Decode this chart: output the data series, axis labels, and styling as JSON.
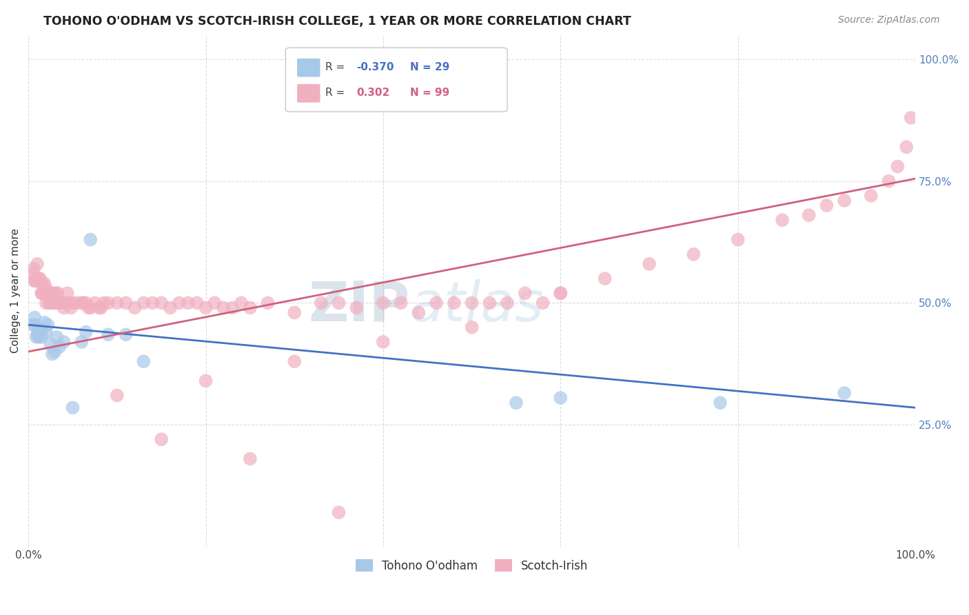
{
  "title": "TOHONO O'ODHAM VS SCOTCH-IRISH COLLEGE, 1 YEAR OR MORE CORRELATION CHART",
  "source": "Source: ZipAtlas.com",
  "ylabel": "College, 1 year or more",
  "xmin": 0.0,
  "xmax": 1.0,
  "ymin": 0.0,
  "ymax": 1.05,
  "ytick_values": [
    0.25,
    0.5,
    0.75,
    1.0
  ],
  "ytick_labels": [
    "25.0%",
    "50.0%",
    "75.0%",
    "100.0%"
  ],
  "xtick_values": [
    0.0,
    1.0
  ],
  "xtick_labels": [
    "0.0%",
    "100.0%"
  ],
  "legend_label1": "Tohono O'odham",
  "legend_label2": "Scotch-Irish",
  "blue_R": "-0.370",
  "blue_N": "29",
  "pink_R": "0.302",
  "pink_N": "99",
  "blue_color": "#a8c8e8",
  "pink_color": "#f0b0c0",
  "blue_line_color": "#4472c4",
  "pink_line_color": "#d06080",
  "watermark_zip": "ZIP",
  "watermark_atlas": "atlas",
  "blue_line_x0": 0.0,
  "blue_line_y0": 0.455,
  "blue_line_x1": 1.0,
  "blue_line_y1": 0.285,
  "pink_line_x0": 0.0,
  "pink_line_y0": 0.4,
  "pink_line_x1": 1.0,
  "pink_line_y1": 0.755,
  "blue_points_x": [
    0.005,
    0.007,
    0.008,
    0.009,
    0.01,
    0.012,
    0.012,
    0.015,
    0.015,
    0.018,
    0.02,
    0.022,
    0.025,
    0.027,
    0.03,
    0.032,
    0.035,
    0.04,
    0.05,
    0.06,
    0.065,
    0.07,
    0.09,
    0.11,
    0.13,
    0.55,
    0.6,
    0.78,
    0.92
  ],
  "blue_points_y": [
    0.455,
    0.47,
    0.455,
    0.43,
    0.435,
    0.43,
    0.445,
    0.43,
    0.445,
    0.46,
    0.44,
    0.455,
    0.415,
    0.395,
    0.4,
    0.43,
    0.41,
    0.42,
    0.285,
    0.42,
    0.44,
    0.63,
    0.435,
    0.435,
    0.38,
    0.295,
    0.305,
    0.295,
    0.315
  ],
  "pink_points_x": [
    0.005,
    0.006,
    0.007,
    0.008,
    0.01,
    0.01,
    0.012,
    0.013,
    0.015,
    0.015,
    0.016,
    0.018,
    0.018,
    0.02,
    0.02,
    0.022,
    0.023,
    0.025,
    0.026,
    0.027,
    0.028,
    0.03,
    0.032,
    0.033,
    0.034,
    0.035,
    0.036,
    0.038,
    0.04,
    0.042,
    0.044,
    0.046,
    0.048,
    0.05,
    0.055,
    0.06,
    0.062,
    0.065,
    0.068,
    0.07,
    0.075,
    0.08,
    0.082,
    0.085,
    0.09,
    0.1,
    0.11,
    0.12,
    0.13,
    0.14,
    0.15,
    0.16,
    0.17,
    0.18,
    0.19,
    0.2,
    0.21,
    0.22,
    0.23,
    0.24,
    0.25,
    0.27,
    0.3,
    0.33,
    0.35,
    0.37,
    0.4,
    0.42,
    0.44,
    0.46,
    0.48,
    0.5,
    0.52,
    0.54,
    0.56,
    0.58,
    0.6,
    0.65,
    0.7,
    0.75,
    0.8,
    0.85,
    0.88,
    0.9,
    0.92,
    0.95,
    0.97,
    0.98,
    0.99,
    0.995,
    0.3,
    0.4,
    0.5,
    0.6,
    0.1,
    0.2,
    0.15,
    0.25,
    0.35
  ],
  "pink_points_y": [
    0.56,
    0.57,
    0.545,
    0.545,
    0.55,
    0.58,
    0.55,
    0.55,
    0.52,
    0.52,
    0.54,
    0.52,
    0.54,
    0.5,
    0.53,
    0.52,
    0.5,
    0.5,
    0.52,
    0.5,
    0.52,
    0.5,
    0.52,
    0.52,
    0.5,
    0.5,
    0.5,
    0.5,
    0.49,
    0.5,
    0.52,
    0.5,
    0.49,
    0.5,
    0.5,
    0.5,
    0.5,
    0.5,
    0.49,
    0.49,
    0.5,
    0.49,
    0.49,
    0.5,
    0.5,
    0.5,
    0.5,
    0.49,
    0.5,
    0.5,
    0.5,
    0.49,
    0.5,
    0.5,
    0.5,
    0.49,
    0.5,
    0.49,
    0.49,
    0.5,
    0.49,
    0.5,
    0.48,
    0.5,
    0.5,
    0.49,
    0.5,
    0.5,
    0.48,
    0.5,
    0.5,
    0.5,
    0.5,
    0.5,
    0.52,
    0.5,
    0.52,
    0.55,
    0.58,
    0.6,
    0.63,
    0.67,
    0.68,
    0.7,
    0.71,
    0.72,
    0.75,
    0.78,
    0.82,
    0.88,
    0.38,
    0.42,
    0.45,
    0.52,
    0.31,
    0.34,
    0.22,
    0.18,
    0.07
  ]
}
